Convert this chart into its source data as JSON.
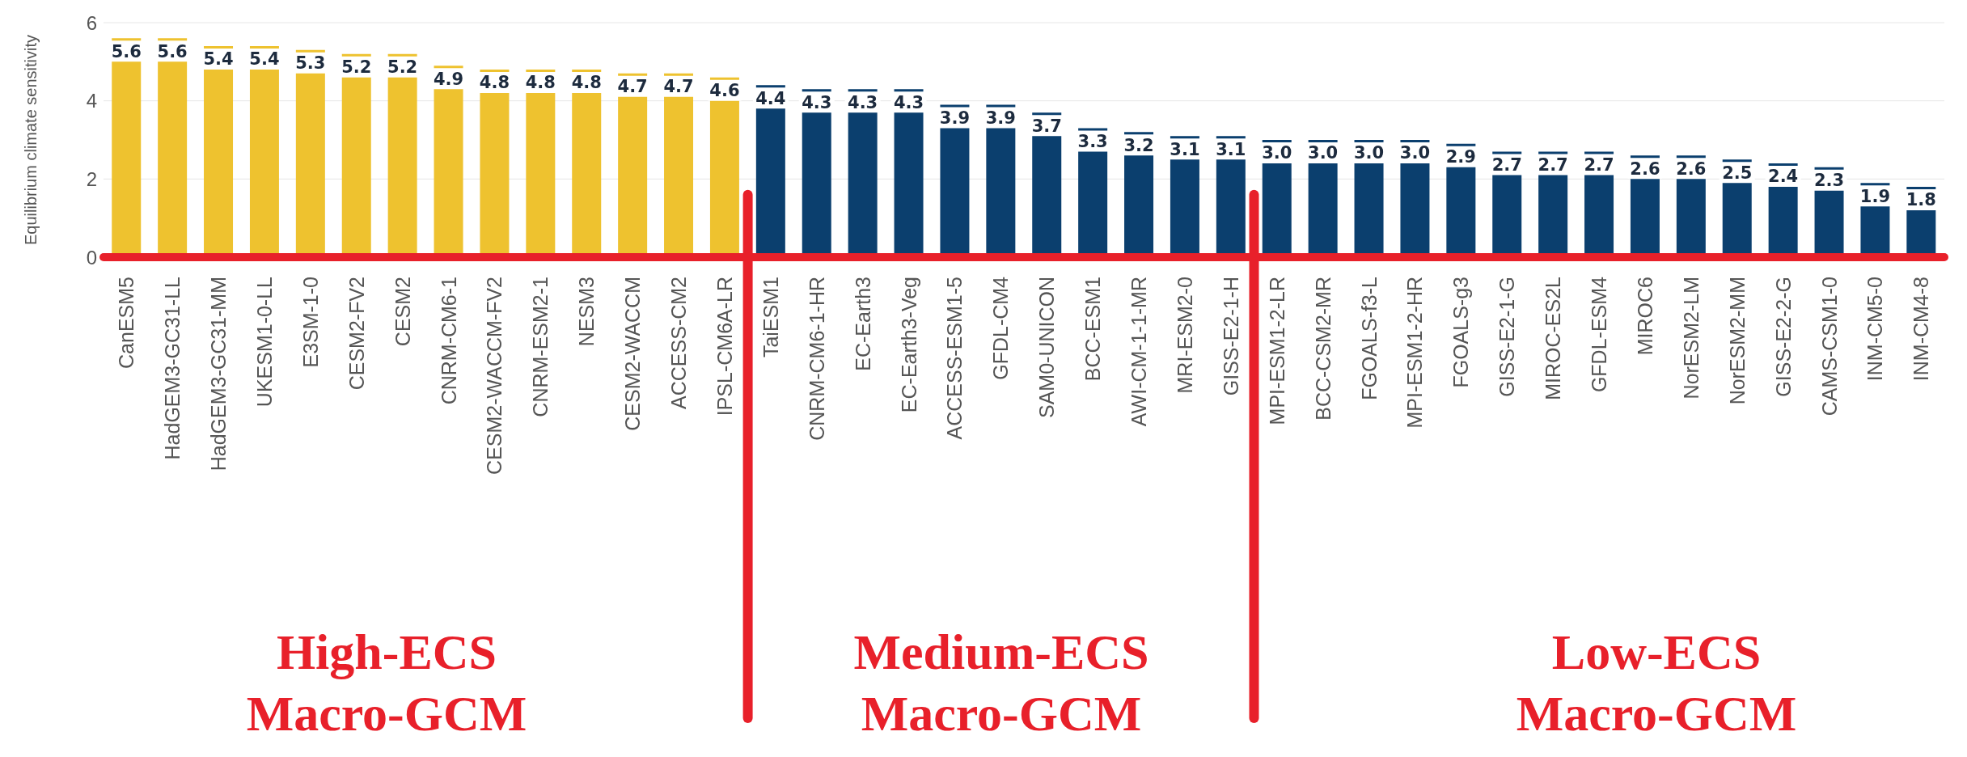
{
  "chart_data": {
    "type": "bar",
    "ylabel": "Equilibrium climate sensitivity",
    "categories": [
      "CanESM5",
      "HadGEM3-GC31-LL",
      "HadGEM3-GC31-MM",
      "UKESM1-0-LL",
      "E3SM-1-0",
      "CESM2-FV2",
      "CESM2",
      "CNRM-CM6-1",
      "CESM2-WACCM-FV2",
      "CNRM-ESM2-1",
      "NESM3",
      "CESM2-WACCM",
      "ACCESS-CM2",
      "IPSL-CM6A-LR",
      "TaiESM1",
      "CNRM-CM6-1-HR",
      "EC-Earth3",
      "EC-Earth3-Veg",
      "ACCESS-ESM1-5",
      "GFDL-CM4",
      "SAM0-UNICON",
      "BCC-ESM1",
      "AWI-CM-1-1-MR",
      "MRI-ESM2-0",
      "GISS-E2-1-H",
      "MPI-ESM1-2-LR",
      "BCC-CSM2-MR",
      "FGOALS-f3-L",
      "MPI-ESM1-2-HR",
      "FGOALS-g3",
      "GISS-E2-1-G",
      "MIROC-ES2L",
      "GFDL-ESM4",
      "MIROC6",
      "NorESM2-LM",
      "NorESM2-MM",
      "GISS-E2-2-G",
      "CAMS-CSM1-0",
      "INM-CM5-0",
      "INM-CM4-8"
    ],
    "values": [
      5.6,
      5.6,
      5.4,
      5.4,
      5.3,
      5.2,
      5.2,
      4.9,
      4.8,
      4.8,
      4.8,
      4.7,
      4.7,
      4.6,
      4.4,
      4.3,
      4.3,
      4.3,
      3.9,
      3.9,
      3.7,
      3.3,
      3.2,
      3.1,
      3.1,
      3.0,
      3.0,
      3.0,
      3.0,
      2.9,
      2.7,
      2.7,
      2.7,
      2.6,
      2.6,
      2.5,
      2.4,
      2.3,
      1.9,
      1.8
    ],
    "value_labels": [
      "5.6",
      "5.6",
      "5.4",
      "5.4",
      "5.3",
      "5.2",
      "5.2",
      "4.9",
      "4.8",
      "4.8",
      "4.8",
      "4.7",
      "4.7",
      "4.6",
      "4.4",
      "4.3",
      "4.3",
      "4.3",
      "3.9",
      "3.9",
      "3.7",
      "3.3",
      "3.2",
      "3.1",
      "3.1",
      "3.0",
      "3.0",
      "3.0",
      "3.0",
      "2.9",
      "2.7",
      "2.7",
      "2.7",
      "2.6",
      "2.6",
      "2.5",
      "2.4",
      "2.3",
      "1.9",
      "1.8"
    ],
    "colors": [
      "#eec22f",
      "#eec22f",
      "#eec22f",
      "#eec22f",
      "#eec22f",
      "#eec22f",
      "#eec22f",
      "#eec22f",
      "#eec22f",
      "#eec22f",
      "#eec22f",
      "#eec22f",
      "#eec22f",
      "#eec22f",
      "#0b3f6e",
      "#0b3f6e",
      "#0b3f6e",
      "#0b3f6e",
      "#0b3f6e",
      "#0b3f6e",
      "#0b3f6e",
      "#0b3f6e",
      "#0b3f6e",
      "#0b3f6e",
      "#0b3f6e",
      "#0b3f6e",
      "#0b3f6e",
      "#0b3f6e",
      "#0b3f6e",
      "#0b3f6e",
      "#0b3f6e",
      "#0b3f6e",
      "#0b3f6e",
      "#0b3f6e",
      "#0b3f6e",
      "#0b3f6e",
      "#0b3f6e",
      "#0b3f6e",
      "#0b3f6e",
      "#0b3f6e"
    ],
    "ylim": [
      0,
      6
    ],
    "yticks": [
      0,
      2,
      4,
      6
    ],
    "grid": "y",
    "annotations": [
      "High-ECS Macro-GCM",
      "Medium-ECS Macro-GCM",
      "Low-ECS Macro-GCM"
    ]
  }
}
